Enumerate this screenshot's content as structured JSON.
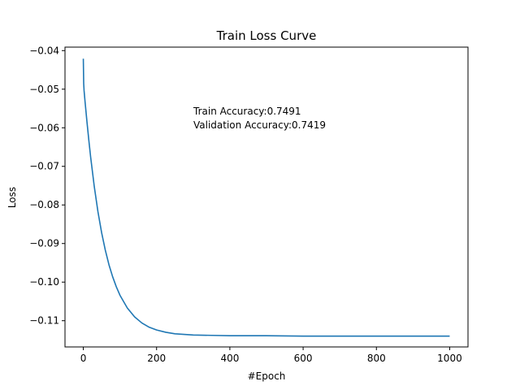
{
  "chart_data": {
    "type": "line",
    "title": "Train Loss Curve",
    "xlabel": "#Epoch",
    "ylabel": "Loss",
    "xlim": [
      -50,
      1050
    ],
    "ylim": [
      -0.1168,
      -0.0391
    ],
    "xticks": [
      0,
      200,
      400,
      600,
      800,
      1000
    ],
    "yticks": [
      -0.04,
      -0.05,
      -0.06,
      -0.07,
      -0.08,
      -0.09,
      -0.1,
      -0.11
    ],
    "xtick_labels": [
      "0",
      "200",
      "400",
      "600",
      "800",
      "1000"
    ],
    "ytick_labels": [
      "−0.04",
      "−0.05",
      "−0.06",
      "−0.07",
      "−0.08",
      "−0.09",
      "−0.10",
      "−0.11"
    ],
    "annotations": [
      "Train Accuracy:0.7491",
      "Validation Accuracy:0.7419"
    ],
    "grid": false,
    "series": [
      {
        "color": "#1f77b4",
        "points": [
          [
            0,
            -0.0421
          ],
          [
            1,
            -0.0485
          ],
          [
            2,
            -0.0503
          ],
          [
            5,
            -0.0535
          ],
          [
            10,
            -0.0585
          ],
          [
            15,
            -0.0632
          ],
          [
            20,
            -0.0676
          ],
          [
            30,
            -0.0753
          ],
          [
            40,
            -0.0818
          ],
          [
            50,
            -0.0872
          ],
          [
            60,
            -0.0917
          ],
          [
            70,
            -0.0955
          ],
          [
            80,
            -0.0986
          ],
          [
            90,
            -0.1012
          ],
          [
            100,
            -0.1034
          ],
          [
            120,
            -0.1067
          ],
          [
            140,
            -0.109
          ],
          [
            160,
            -0.1106
          ],
          [
            180,
            -0.1117
          ],
          [
            200,
            -0.1124
          ],
          [
            225,
            -0.113
          ],
          [
            250,
            -0.1134
          ],
          [
            300,
            -0.1137
          ],
          [
            350,
            -0.1138
          ],
          [
            400,
            -0.1139
          ],
          [
            500,
            -0.1139
          ],
          [
            600,
            -0.114
          ],
          [
            700,
            -0.114
          ],
          [
            800,
            -0.114
          ],
          [
            900,
            -0.114
          ],
          [
            1000,
            -0.114
          ]
        ]
      }
    ]
  }
}
